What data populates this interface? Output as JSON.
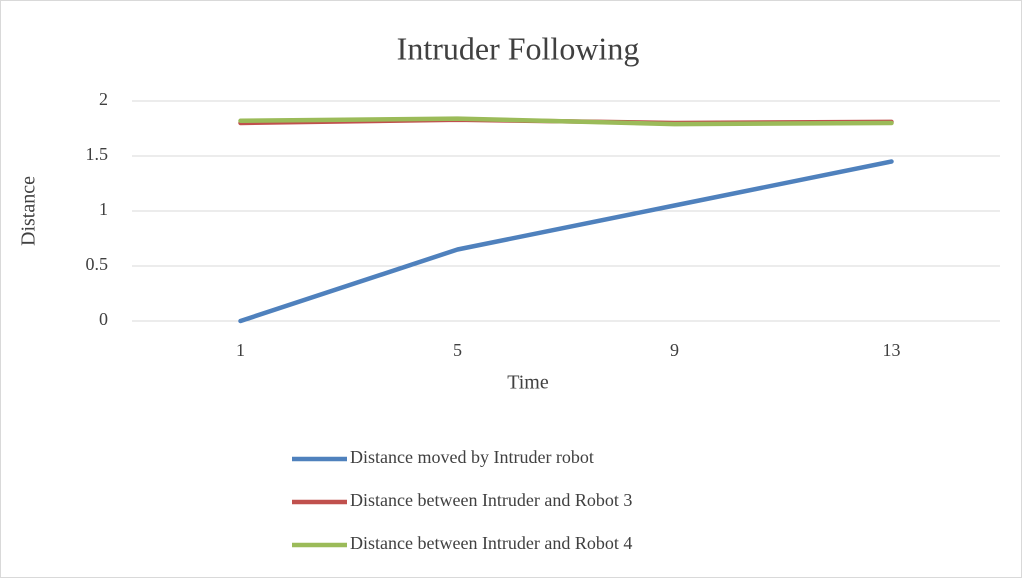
{
  "chart_data": {
    "type": "line",
    "title": "Intruder Following",
    "x_label": "Time",
    "y_label": "Distance",
    "categories": [
      "1",
      "5",
      "9",
      "13"
    ],
    "series": [
      {
        "name": "Distance moved by Intruder robot",
        "color": "#4f81bd",
        "values": [
          0,
          0.65,
          1.05,
          1.45
        ]
      },
      {
        "name": "Distance between Intruder and Robot 3",
        "color": "#c0504d",
        "values": [
          1.8,
          1.83,
          1.8,
          1.81
        ]
      },
      {
        "name": "Distance between Intruder and Robot 4",
        "color": "#9bbb59",
        "values": [
          1.82,
          1.84,
          1.79,
          1.8
        ]
      }
    ],
    "ylim": [
      0,
      2
    ],
    "yticks": [
      0,
      0.5,
      1,
      1.5,
      2
    ],
    "grid": true,
    "legend": "bottom"
  }
}
